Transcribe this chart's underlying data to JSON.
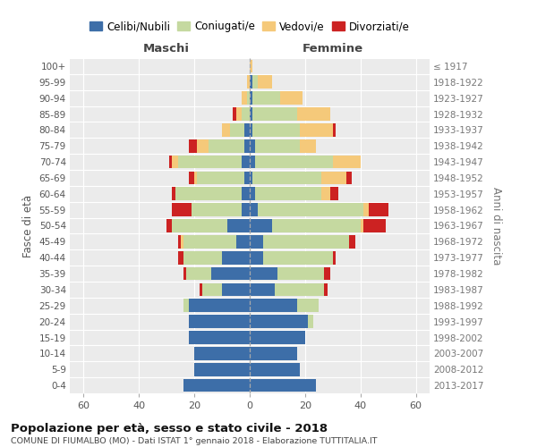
{
  "age_groups": [
    "0-4",
    "5-9",
    "10-14",
    "15-19",
    "20-24",
    "25-29",
    "30-34",
    "35-39",
    "40-44",
    "45-49",
    "50-54",
    "55-59",
    "60-64",
    "65-69",
    "70-74",
    "75-79",
    "80-84",
    "85-89",
    "90-94",
    "95-99",
    "100+"
  ],
  "birth_years": [
    "2013-2017",
    "2008-2012",
    "2003-2007",
    "1998-2002",
    "1993-1997",
    "1988-1992",
    "1983-1987",
    "1978-1982",
    "1973-1977",
    "1968-1972",
    "1963-1967",
    "1958-1962",
    "1953-1957",
    "1948-1952",
    "1943-1947",
    "1938-1942",
    "1933-1937",
    "1928-1932",
    "1923-1927",
    "1918-1922",
    "≤ 1917"
  ],
  "colors": {
    "celibi": "#3d6ea8",
    "coniugati": "#c5d9a0",
    "vedovi": "#f5c97a",
    "divorziati": "#cc2222"
  },
  "maschi": {
    "celibi": [
      24,
      20,
      20,
      22,
      22,
      22,
      10,
      14,
      10,
      5,
      8,
      3,
      3,
      2,
      3,
      2,
      2,
      0,
      0,
      0,
      0
    ],
    "coniugati": [
      0,
      0,
      0,
      0,
      0,
      2,
      7,
      9,
      14,
      19,
      20,
      18,
      24,
      17,
      23,
      13,
      5,
      3,
      1,
      0,
      0
    ],
    "vedovi": [
      0,
      0,
      0,
      0,
      0,
      0,
      0,
      0,
      0,
      1,
      0,
      0,
      0,
      1,
      2,
      4,
      3,
      2,
      2,
      1,
      0
    ],
    "divorziati": [
      0,
      0,
      0,
      0,
      0,
      0,
      1,
      1,
      2,
      1,
      2,
      7,
      1,
      2,
      1,
      3,
      0,
      1,
      0,
      0,
      0
    ]
  },
  "femmine": {
    "celibi": [
      24,
      18,
      17,
      20,
      21,
      17,
      9,
      10,
      5,
      5,
      8,
      3,
      2,
      1,
      2,
      2,
      1,
      1,
      1,
      1,
      0
    ],
    "coniugati": [
      0,
      0,
      0,
      0,
      2,
      8,
      18,
      17,
      25,
      31,
      32,
      38,
      24,
      25,
      28,
      16,
      17,
      16,
      10,
      2,
      0
    ],
    "vedovi": [
      0,
      0,
      0,
      0,
      0,
      0,
      0,
      0,
      0,
      0,
      1,
      2,
      3,
      9,
      10,
      6,
      12,
      12,
      8,
      5,
      1
    ],
    "divorziati": [
      0,
      0,
      0,
      0,
      0,
      0,
      1,
      2,
      1,
      2,
      8,
      7,
      3,
      2,
      0,
      0,
      1,
      0,
      0,
      0,
      0
    ]
  },
  "xlim": 65,
  "title": "Popolazione per età, sesso e stato civile - 2018",
  "subtitle": "COMUNE DI FIUMALBO (MO) - Dati ISTAT 1° gennaio 2018 - Elaborazione TUTTITALIA.IT",
  "legend_labels": [
    "Celibi/Nubili",
    "Coniugati/e",
    "Vedovi/e",
    "Divorziati/e"
  ],
  "ylabel_left": "Fasce di età",
  "ylabel_right": "Anni di nascita",
  "xlabel_maschi": "Maschi",
  "xlabel_femmine": "Femmine"
}
